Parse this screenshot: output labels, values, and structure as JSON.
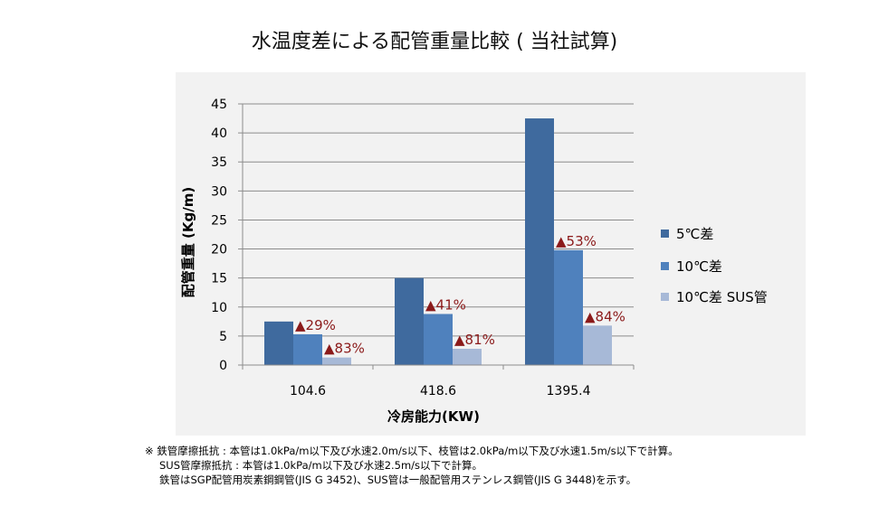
{
  "title": "水温度差による配管重量比較 ( 当社試算)",
  "chart_data": {
    "type": "bar",
    "title": "水温度差による配管重量比較 ( 当社試算)",
    "xlabel": "冷房能力(KW)",
    "ylabel": "配管重量 (Kg/m)",
    "categories": [
      "104.6",
      "418.6",
      "1395.4"
    ],
    "ylim": [
      0,
      45
    ],
    "yticks": [
      "0",
      "5",
      "10",
      "15",
      "20",
      "25",
      "30",
      "35",
      "40",
      "45"
    ],
    "grid": true,
    "legend_position": "right",
    "series": [
      {
        "name": "5℃差",
        "color": "#3f6a9e",
        "values": [
          7.5,
          15,
          42.5
        ],
        "labels": [
          "",
          "",
          ""
        ]
      },
      {
        "name": "10℃差",
        "color": "#4f81bd",
        "values": [
          5.3,
          8.8,
          19.8
        ],
        "labels": [
          "▲29%",
          "▲41%",
          "▲53%"
        ]
      },
      {
        "name": "10℃差 SUS管",
        "color": "#a7b9d7",
        "values": [
          1.3,
          2.8,
          6.8
        ],
        "labels": [
          "▲83%",
          "▲81%",
          "▲84%"
        ]
      }
    ],
    "label_color": "#8b1a1a"
  },
  "notes": [
    "※ 鉄管摩擦抵抗 : 本管は1.0kPa/m以下及び水速2.0m/s以下、枝管は2.0kPa/m以下及び水速1.5m/s以下で計算。",
    "SUS管摩擦抵抗 : 本管は1.0kPa/m以下及び水速2.5m/s以下で計算。",
    "鉄管はSGP配管用炭素鋼鋼管(JIS G 3452)、SUS管は一般配管用ステンレス鋼管(JIS G 3448)を示す。"
  ]
}
